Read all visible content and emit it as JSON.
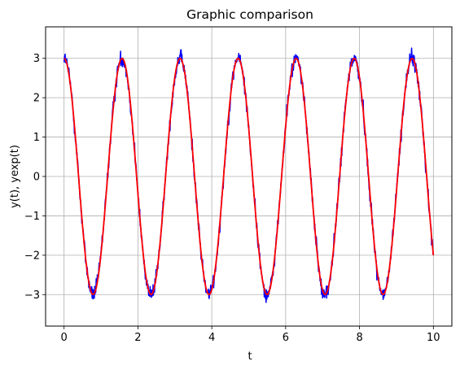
{
  "chart_data": {
    "type": "line",
    "title": "Graphic comparison",
    "xlabel": "t",
    "ylabel": "y(t), yexp(t)",
    "xlim": [
      -0.5,
      10.5
    ],
    "ylim": [
      -3.8,
      3.8
    ],
    "xticks": [
      0,
      2,
      4,
      6,
      8,
      10
    ],
    "yticks": [
      -3,
      -2,
      -1,
      0,
      1,
      2,
      3
    ],
    "ytick_labels": [
      "−3",
      "−2",
      "−1",
      "0",
      "1",
      "2",
      "3"
    ],
    "grid": true,
    "series": [
      {
        "color": "#0000ff",
        "model": {
          "amplitude": 3,
          "angular_frequency": 4,
          "t_start": 0,
          "t_end": 10,
          "noise": 0.18
        }
      },
      {
        "color": "#ff0000",
        "model": {
          "amplitude": 3,
          "angular_frequency": 4,
          "t_start": 0,
          "t_end": 10,
          "noise": 0
        }
      }
    ]
  }
}
